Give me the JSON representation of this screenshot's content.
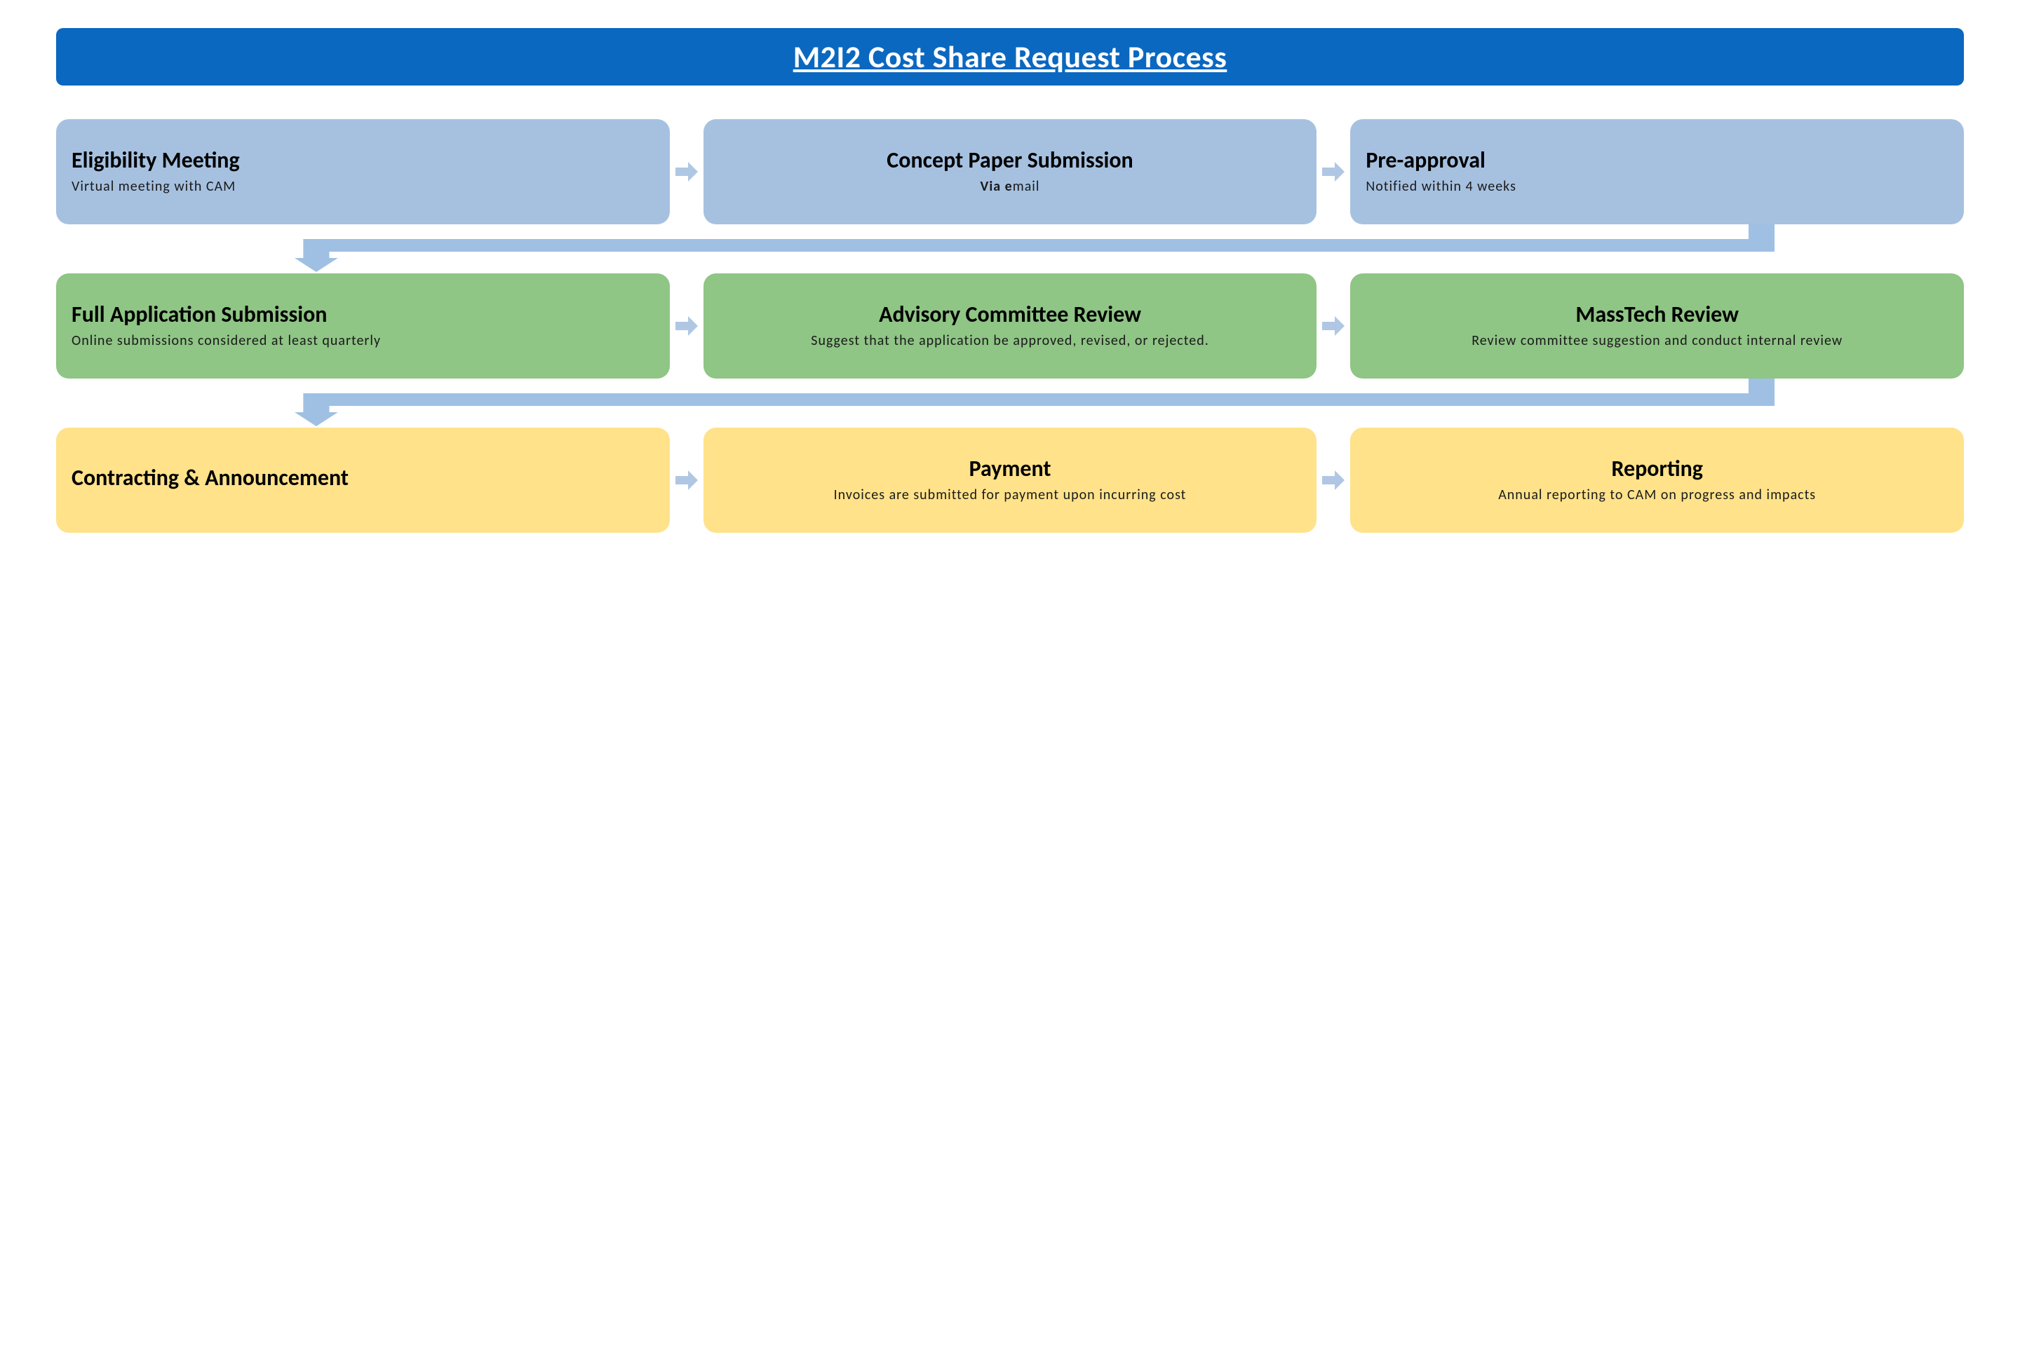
{
  "title": {
    "text": "M2I2 Cost Share Request Process",
    "bg_color": "#0b68c0",
    "text_color": "#ffffff",
    "fontsize": 44
  },
  "arrow_color": "#b0c7e4",
  "connector_color": "#9fc0e3",
  "row_colors": {
    "row1": "#a6c1e0",
    "row2": "#8fc585",
    "row3": "#ffe28a"
  },
  "rows": [
    {
      "align": [
        "left",
        "center",
        "left"
      ],
      "boxes": [
        {
          "title": "Eligibility Meeting",
          "sub": "Virtual meeting with CAM"
        },
        {
          "title": "Concept Paper Submission",
          "sub_html": "<b>Via e</b>mail"
        },
        {
          "title": "Pre-approval",
          "sub": "Notified within 4 weeks"
        }
      ]
    },
    {
      "align": [
        "left",
        "center",
        "center"
      ],
      "boxes": [
        {
          "title": "Full Application Submission",
          "sub": "Online submissions considered at least quarterly"
        },
        {
          "title": "Advisory Committee Review",
          "sub": "Suggest that the application be approved, revised, or rejected."
        },
        {
          "title": "MassTech Review",
          "sub": "Review committee suggestion and conduct internal review"
        }
      ]
    },
    {
      "align": [
        "left",
        "center",
        "center"
      ],
      "boxes": [
        {
          "title": "Contracting & Announcement",
          "sub": ""
        },
        {
          "title": "Payment",
          "sub": "Invoices are submitted for payment upon incurring cost"
        },
        {
          "title": "Reporting",
          "sub": "Annual reporting to CAM on progress and impacts"
        }
      ]
    }
  ]
}
